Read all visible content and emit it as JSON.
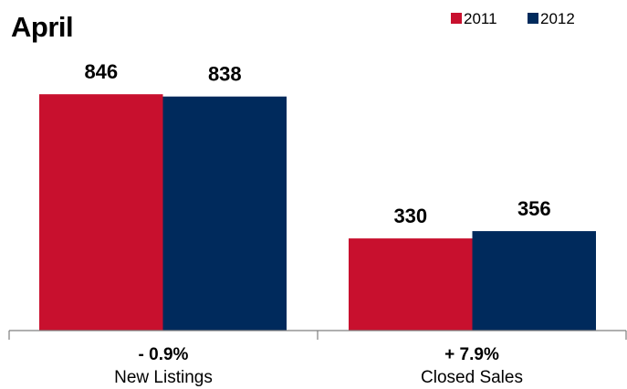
{
  "chart_data": {
    "type": "bar",
    "title": "April",
    "categories": [
      "New Listings",
      "Closed Sales"
    ],
    "changes": [
      "- 0.9%",
      "+ 7.9%"
    ],
    "series": [
      {
        "name": "2011",
        "values": [
          846,
          330
        ],
        "color": "#c8102e"
      },
      {
        "name": "2012",
        "values": [
          838,
          356
        ],
        "color": "#002a5c"
      }
    ],
    "ylim": [
      0,
      960
    ],
    "grid": false,
    "legend_position": "top-right",
    "xlabel": "",
    "ylabel": ""
  }
}
